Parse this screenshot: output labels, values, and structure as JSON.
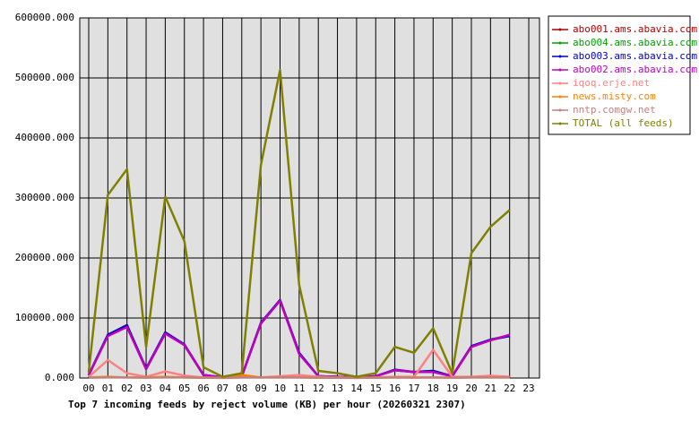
{
  "chart_data": {
    "type": "line",
    "title": "Top 7 incoming feeds by reject volume (KB) per hour (20260321 2307)",
    "categories": [
      "00",
      "01",
      "02",
      "03",
      "04",
      "05",
      "06",
      "07",
      "08",
      "09",
      "10",
      "11",
      "12",
      "13",
      "14",
      "15",
      "16",
      "17",
      "18",
      "19",
      "20",
      "21",
      "22",
      "23"
    ],
    "ylim": [
      0,
      600000
    ],
    "yticks": [
      {
        "value": 0,
        "label": "0.000"
      },
      {
        "value": 100000,
        "label": "100000.000"
      },
      {
        "value": 200000,
        "label": "200000.000"
      },
      {
        "value": 300000,
        "label": "300000.000"
      },
      {
        "value": 400000,
        "label": "400000.000"
      },
      {
        "value": 500000,
        "label": "500000.000"
      },
      {
        "value": 600000,
        "label": "600000.000"
      }
    ],
    "grid": true,
    "background": "#e0e0e0",
    "legend": "right",
    "series": [
      {
        "name": "abo001.ams.abavia.com",
        "color": "#b00000",
        "values": [
          5000,
          71000,
          87000,
          15000,
          75000,
          55000,
          5000,
          1000,
          3000,
          91000,
          129000,
          41000,
          3000,
          2000,
          1000,
          3000,
          13000,
          10000,
          11000,
          3000,
          52000,
          63000,
          71000,
          null
        ]
      },
      {
        "name": "abo004.ams.abavia.com",
        "color": "#00a000",
        "values": [
          5000,
          72000,
          88000,
          15000,
          76000,
          55000,
          5000,
          1000,
          3000,
          92000,
          130000,
          41000,
          3000,
          2000,
          1000,
          3000,
          13000,
          10000,
          12000,
          3000,
          53000,
          64000,
          71000,
          null
        ]
      },
      {
        "name": "abo003.ams.abavia.com",
        "color": "#0000c0",
        "values": [
          5000,
          72000,
          88000,
          16000,
          76000,
          56000,
          5000,
          1000,
          3000,
          92000,
          130000,
          42000,
          3000,
          2000,
          1000,
          3000,
          14000,
          10000,
          12000,
          3000,
          53000,
          64000,
          70000,
          null
        ]
      },
      {
        "name": "abo002.ams.abavia.com",
        "color": "#c000c0",
        "values": [
          5000,
          70000,
          85000,
          15000,
          74000,
          55000,
          5000,
          1000,
          3000,
          91000,
          129000,
          40000,
          3000,
          2000,
          1000,
          3000,
          13000,
          10000,
          10000,
          3000,
          52000,
          63000,
          72000,
          null
        ]
      },
      {
        "name": "iqoq.erje.net",
        "color": "#ff8080",
        "values": [
          2000,
          30000,
          8000,
          2000,
          11000,
          4000,
          1000,
          0,
          1000,
          1000,
          3000,
          5000,
          2000,
          1000,
          0,
          1000,
          2000,
          2000,
          47000,
          2000,
          2000,
          4000,
          2000,
          null
        ]
      },
      {
        "name": "news.misty.com",
        "color": "#ff8000",
        "values": [
          1000,
          2000,
          1000,
          1000,
          2000,
          1000,
          500,
          500,
          5000,
          1000,
          1000,
          1000,
          500,
          500,
          500,
          500,
          1000,
          1000,
          1000,
          500,
          1000,
          1000,
          1000,
          null
        ]
      },
      {
        "name": "nntp.comgw.net",
        "color": "#c08080",
        "values": [
          500,
          1000,
          1000,
          500,
          1000,
          1000,
          500,
          500,
          1000,
          1000,
          1000,
          1000,
          500,
          500,
          500,
          500,
          1000,
          500,
          1000,
          500,
          1000,
          1000,
          1000,
          null
        ]
      },
      {
        "name": "TOTAL (all feeds)",
        "color": "#808000",
        "values": [
          10000,
          305000,
          348000,
          52000,
          302000,
          228000,
          18000,
          2000,
          8000,
          355000,
          513000,
          155000,
          12000,
          8000,
          2000,
          8000,
          52000,
          42000,
          83000,
          8000,
          208000,
          252000,
          280000,
          null
        ]
      }
    ]
  }
}
